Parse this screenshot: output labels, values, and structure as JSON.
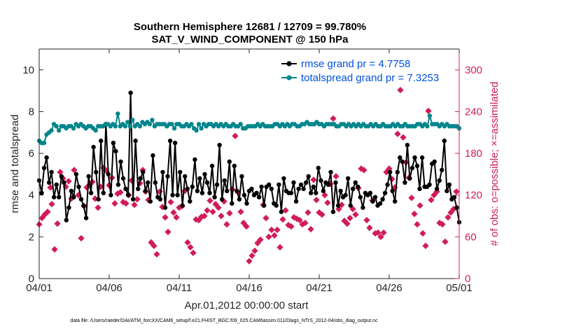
{
  "chart_data": {
    "type": "line",
    "title": "Southern Hemisphere 12681 / 12709 = 99.780%",
    "subtitle": "SAT_V_WIND_COMPONENT @ 150 hPa",
    "xlabel": "Apr.01,2012 00:00:00 start",
    "ylabel": "rmse and totalspread",
    "ylabel_right": "# of obs: o=possible; ×=assimilated",
    "footer": "data file: /Users/raeder/DAI/ATM_forcXX/CAM6_setup/f.e21.FHIST_BGC.f09_025.CAM6assim.011/Diags_NTrS_2012-04/obs_diag_output.nc",
    "xlim": [
      0,
      30
    ],
    "ylim": [
      0,
      11
    ],
    "ylim_right": [
      0,
      330
    ],
    "x_ticks": [
      0,
      5,
      10,
      15,
      20,
      25,
      30
    ],
    "x_tick_labels": [
      "04/01",
      "04/06",
      "04/11",
      "04/16",
      "04/21",
      "04/26",
      "05/01"
    ],
    "y_ticks": [
      0,
      2,
      4,
      6,
      8,
      10
    ],
    "y_right_ticks": [
      0,
      60,
      120,
      180,
      240,
      300
    ],
    "colors": {
      "rmse": "#000000",
      "spread": "#00868b",
      "obs": "#d01c5c",
      "legend_text": "#0052e0"
    },
    "series": [
      {
        "name": "rmse grand pr = 4.7758",
        "values": [
          4.7,
          4.1,
          5.3,
          5.8,
          4.6,
          5.1,
          3.9,
          4.5,
          3.9,
          4.9,
          4.6,
          2.8,
          3.4,
          4.2,
          3.9,
          5.0,
          4.4,
          3.8,
          3.5,
          2.9,
          4.9,
          4.1,
          6.3,
          5.1,
          3.8,
          6.6,
          4.1,
          7.4,
          5.0,
          4.0,
          6.5,
          6.1,
          4.5,
          5.6,
          4.8,
          4.3,
          4.0,
          8.9,
          3.8,
          6.6,
          4.3,
          4.8,
          5.1,
          4.2,
          4.6,
          3.7,
          5.9,
          4.6,
          3.9,
          3.8,
          5.1,
          3.4,
          4.9,
          6.6,
          4.0,
          6.5,
          4.0,
          5.1,
          3.5,
          4.9,
          4.3,
          3.7,
          4.4,
          5.7,
          4.2,
          4.8,
          4.1,
          5.0,
          4.6,
          4.1,
          5.4,
          3.9,
          4.5,
          6.4,
          3.8,
          4.7,
          4.2,
          5.6,
          3.6,
          5.4,
          4.2,
          3.8,
          4.9,
          4.0,
          3.6,
          4.2,
          4.3,
          4.0,
          4.1,
          3.9,
          4.4,
          3.5,
          4.4,
          4.5,
          4.3,
          3.6,
          3.5,
          4.5,
          3.2,
          4.8,
          4.2,
          4.1,
          4.1,
          4.6,
          3.7,
          4.3,
          4.5,
          4.3,
          4.6,
          4.9,
          4.1,
          4.4,
          4.1,
          5.3,
          4.7,
          4.2,
          4.6,
          4.5,
          5.1,
          3.2,
          4.6,
          3.5,
          4.2,
          3.9,
          4.0,
          4.8,
          3.5,
          4.3,
          4.6,
          4.4,
          3.9,
          3.4,
          4.1,
          4.0,
          4.1,
          3.7,
          3.9,
          3.5,
          3.6,
          3.8,
          4.1,
          4.5,
          5.1,
          4.2,
          3.7,
          5.1,
          5.8,
          5.6,
          4.6,
          6.4,
          4.8,
          5.3,
          5.8,
          5.4,
          4.3,
          5.8,
          4.4,
          4.4,
          4.5,
          5.5,
          5.6,
          4.3,
          4.7,
          5.2,
          6.6,
          4.2,
          4.5,
          3.8,
          3.9,
          3.4,
          2.7
        ],
        "color": "#000000"
      },
      {
        "name": "totalspread grand pr = 7.3253",
        "values": [
          6.6,
          6.5,
          6.5,
          6.9,
          7.0,
          7.1,
          7.4,
          7.3,
          7.1,
          7.3,
          7.3,
          7.2,
          7.3,
          7.3,
          7.2,
          7.4,
          7.3,
          7.4,
          7.3,
          7.2,
          7.3,
          7.3,
          7.2,
          7.1,
          7.3,
          7.3,
          7.3,
          7.4,
          7.4,
          7.3,
          7.4,
          7.3,
          7.9,
          7.3,
          7.4,
          7.3,
          7.5,
          7.3,
          7.6,
          7.3,
          7.4,
          7.3,
          7.5,
          7.4,
          7.5,
          7.4,
          7.6,
          7.3,
          7.4,
          7.4,
          7.4,
          7.4,
          7.3,
          7.4,
          7.4,
          7.2,
          7.4,
          7.4,
          7.3,
          7.3,
          7.4,
          7.3,
          7.4,
          7.2,
          7.1,
          7.4,
          7.2,
          7.4,
          7.3,
          7.4,
          7.4,
          7.3,
          7.4,
          7.3,
          7.4,
          7.3,
          7.4,
          7.3,
          7.3,
          7.4,
          7.3,
          7.3,
          7.4,
          7.2,
          7.2,
          7.3,
          7.3,
          7.3,
          7.3,
          7.4,
          7.3,
          7.4,
          7.3,
          7.3,
          7.3,
          7.3,
          7.4,
          7.4,
          7.3,
          7.4,
          7.3,
          7.4,
          7.3,
          7.4,
          7.4,
          7.3,
          7.3,
          7.4,
          7.4,
          7.5,
          7.4,
          7.4,
          7.4,
          7.5,
          7.4,
          7.4,
          7.3,
          7.4,
          7.4,
          7.4,
          7.4,
          7.3,
          7.3,
          7.4,
          7.4,
          7.3,
          7.4,
          7.3,
          7.4,
          7.3,
          7.4,
          7.3,
          7.4,
          7.3,
          7.3,
          7.4,
          7.3,
          7.4,
          7.3,
          7.3,
          7.4,
          7.3,
          7.3,
          7.3,
          7.4,
          7.3,
          7.4,
          7.3,
          7.3,
          7.4,
          7.3,
          7.3,
          7.3,
          7.3,
          7.4,
          7.4,
          7.3,
          7.4,
          7.3,
          7.8,
          7.4,
          7.4,
          7.4,
          7.3,
          7.4,
          7.3,
          7.4,
          7.3,
          7.3,
          7.3,
          7.3,
          7.2
        ],
        "color": "#00868b"
      }
    ],
    "obs_points": [
      [
        0.0,
        78
      ],
      [
        0.2,
        87
      ],
      [
        0.4,
        92
      ],
      [
        0.6,
        96
      ],
      [
        0.8,
        131
      ],
      [
        0.9,
        107
      ],
      [
        1.1,
        42
      ],
      [
        1.3,
        79
      ],
      [
        1.5,
        153
      ],
      [
        1.7,
        144
      ],
      [
        1.9,
        132
      ],
      [
        2.1,
        140
      ],
      [
        2.3,
        115
      ],
      [
        2.5,
        156
      ],
      [
        2.8,
        120
      ],
      [
        3.0,
        58
      ],
      [
        3.2,
        104
      ],
      [
        3.4,
        131
      ],
      [
        3.6,
        135
      ],
      [
        3.8,
        139
      ],
      [
        4.0,
        115
      ],
      [
        4.2,
        102
      ],
      [
        4.4,
        132
      ],
      [
        4.6,
        159
      ],
      [
        4.8,
        155
      ],
      [
        5.0,
        134
      ],
      [
        5.2,
        145
      ],
      [
        5.4,
        108
      ],
      [
        5.6,
        122
      ],
      [
        5.8,
        124
      ],
      [
        6.0,
        110
      ],
      [
        6.2,
        108
      ],
      [
        6.4,
        120
      ],
      [
        6.6,
        141
      ],
      [
        6.8,
        106
      ],
      [
        7.0,
        114
      ],
      [
        7.2,
        137
      ],
      [
        7.4,
        156
      ],
      [
        7.6,
        125
      ],
      [
        7.8,
        113
      ],
      [
        8.0,
        52
      ],
      [
        8.2,
        47
      ],
      [
        8.4,
        35
      ],
      [
        8.6,
        125
      ],
      [
        8.8,
        103
      ],
      [
        9.0,
        88
      ],
      [
        9.2,
        67
      ],
      [
        9.4,
        110
      ],
      [
        9.6,
        95
      ],
      [
        9.8,
        88
      ],
      [
        10.0,
        102
      ],
      [
        10.2,
        104
      ],
      [
        10.4,
        126
      ],
      [
        10.6,
        52
      ],
      [
        10.8,
        45
      ],
      [
        11.0,
        37
      ],
      [
        11.2,
        85
      ],
      [
        11.4,
        84
      ],
      [
        11.6,
        89
      ],
      [
        11.8,
        90
      ],
      [
        12.0,
        98
      ],
      [
        12.2,
        112
      ],
      [
        12.4,
        96
      ],
      [
        12.6,
        107
      ],
      [
        12.8,
        102
      ],
      [
        13.0,
        90
      ],
      [
        13.2,
        111
      ],
      [
        13.4,
        78
      ],
      [
        13.6,
        94
      ],
      [
        13.8,
        128
      ],
      [
        14.0,
        205
      ],
      [
        14.2,
        124
      ],
      [
        14.4,
        96
      ],
      [
        14.6,
        80
      ],
      [
        14.8,
        75
      ],
      [
        15.0,
        25
      ],
      [
        15.2,
        33
      ],
      [
        15.4,
        40
      ],
      [
        15.6,
        51
      ],
      [
        15.8,
        56
      ],
      [
        16.0,
        106
      ],
      [
        16.2,
        87
      ],
      [
        16.4,
        60
      ],
      [
        16.6,
        70
      ],
      [
        16.8,
        62
      ],
      [
        17.0,
        70
      ],
      [
        17.2,
        45
      ],
      [
        17.4,
        85
      ],
      [
        17.6,
        98
      ],
      [
        17.8,
        77
      ],
      [
        18.0,
        75
      ],
      [
        18.2,
        88
      ],
      [
        18.4,
        86
      ],
      [
        18.6,
        84
      ],
      [
        18.8,
        78
      ],
      [
        19.0,
        80
      ],
      [
        19.2,
        95
      ],
      [
        19.4,
        71
      ],
      [
        19.6,
        142
      ],
      [
        19.8,
        113
      ],
      [
        20.0,
        95
      ],
      [
        20.2,
        92
      ],
      [
        20.4,
        120
      ],
      [
        20.6,
        109
      ],
      [
        20.8,
        136
      ],
      [
        21.0,
        230
      ],
      [
        21.2,
        147
      ],
      [
        21.4,
        100
      ],
      [
        21.6,
        106
      ],
      [
        21.8,
        83
      ],
      [
        22.0,
        79
      ],
      [
        22.2,
        87
      ],
      [
        22.4,
        100
      ],
      [
        22.6,
        92
      ],
      [
        22.8,
        130
      ],
      [
        23.0,
        158
      ],
      [
        23.2,
        156
      ],
      [
        23.4,
        84
      ],
      [
        23.6,
        73
      ],
      [
        23.8,
        112
      ],
      [
        24.0,
        65
      ],
      [
        24.2,
        66
      ],
      [
        24.4,
        60
      ],
      [
        24.6,
        66
      ],
      [
        24.8,
        153
      ],
      [
        25.0,
        158
      ],
      [
        25.2,
        143
      ],
      [
        25.4,
        131
      ],
      [
        25.6,
        208
      ],
      [
        25.8,
        271
      ],
      [
        26.0,
        203
      ],
      [
        26.2,
        167
      ],
      [
        26.4,
        145
      ],
      [
        26.6,
        116
      ],
      [
        26.8,
        93
      ],
      [
        27.0,
        78
      ],
      [
        27.2,
        105
      ],
      [
        27.4,
        65
      ],
      [
        27.6,
        47
      ],
      [
        27.8,
        241
      ],
      [
        28.0,
        113
      ],
      [
        28.2,
        120
      ],
      [
        28.4,
        125
      ],
      [
        28.6,
        80
      ],
      [
        28.8,
        78
      ],
      [
        29.0,
        53
      ],
      [
        29.2,
        88
      ],
      [
        29.4,
        95
      ],
      [
        29.6,
        100
      ],
      [
        29.8,
        125
      ]
    ]
  }
}
